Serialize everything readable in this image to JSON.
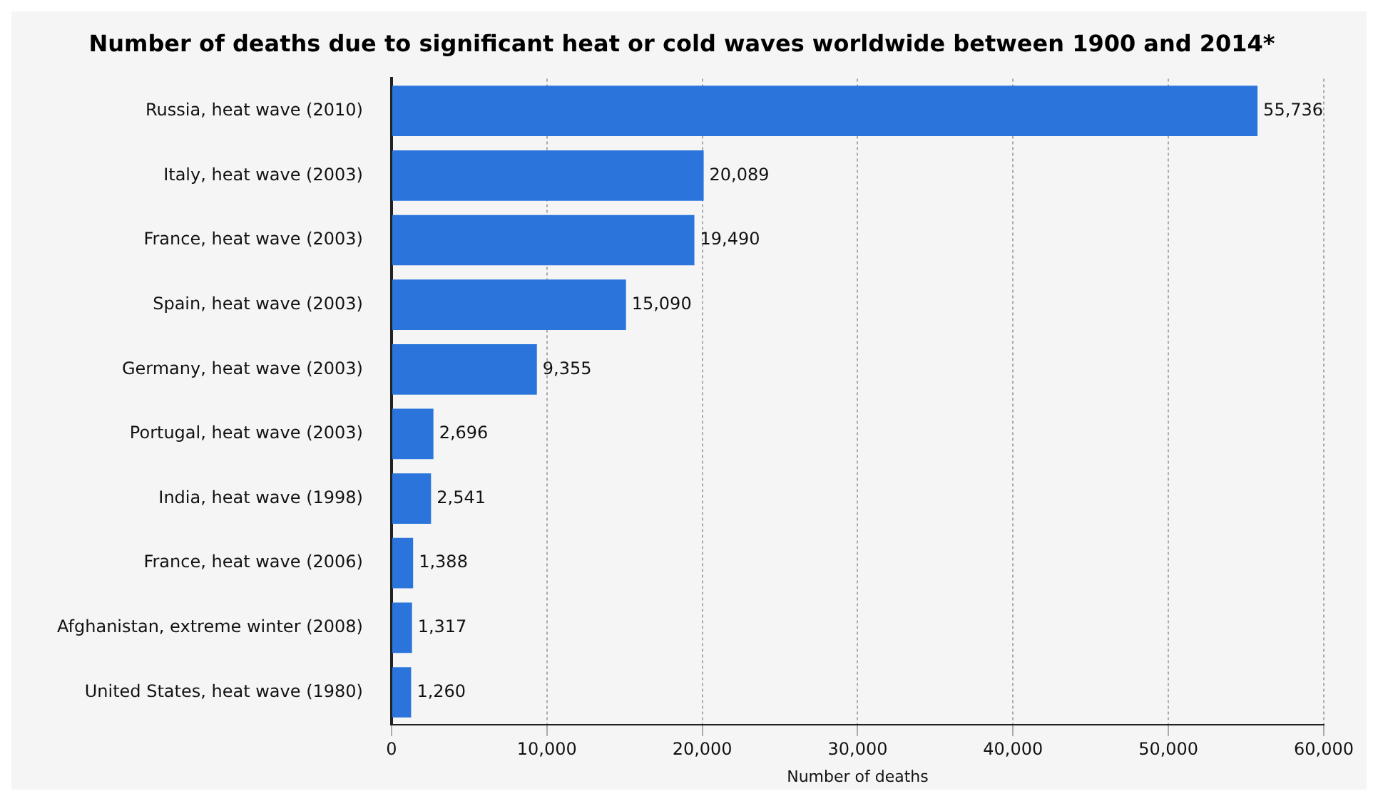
{
  "chart_data": {
    "type": "bar",
    "orientation": "horizontal",
    "title": "Number of deaths due to significant heat or cold waves worldwide between 1900 and 2014*",
    "xlabel": "Number of deaths",
    "categories": [
      "Russia, heat wave (2010)",
      "Italy, heat wave (2003)",
      "France, heat wave (2003)",
      "Spain, heat wave (2003)",
      "Germany, heat wave (2003)",
      "Portugal, heat wave (2003)",
      "India, heat wave (1998)",
      "France, heat wave (2006)",
      "Afghanistan, extreme winter (2008)",
      "United States, heat wave (1980)"
    ],
    "values": [
      55736,
      20089,
      19490,
      15090,
      9355,
      2696,
      2541,
      1388,
      1317,
      1260
    ],
    "value_labels": [
      "55,736",
      "20,089",
      "19,490",
      "15,090",
      "9,355",
      "2,696",
      "2,541",
      "1,388",
      "1,317",
      "1,260"
    ],
    "color": "#2a74dc",
    "xlim": [
      0,
      60000
    ],
    "xticks": [
      0,
      {
        "value": 10000,
        "label": "10,000"
      },
      {
        "value": 20000,
        "label": "20,000"
      },
      {
        "value": 30000,
        "label": "30,000"
      },
      {
        "value": 40000,
        "label": "40,000"
      },
      {
        "value": 50000,
        "label": "50,000"
      },
      {
        "value": 60000,
        "label": "60,000"
      }
    ],
    "grid": "x",
    "legend": false
  }
}
